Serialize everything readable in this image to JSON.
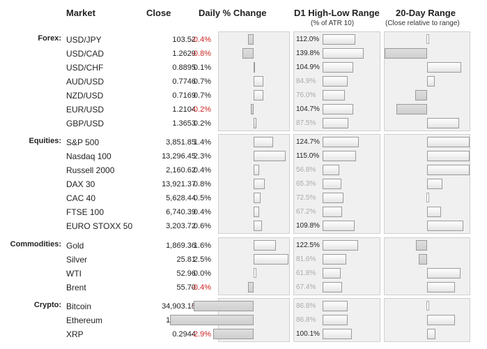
{
  "headers": {
    "market": "Market",
    "close": "Close",
    "change": "Daily % Change",
    "range": "D1 High-Low Range",
    "range_sub": "(% of ATR 10)",
    "twenty": "20-Day Range",
    "twenty_sub": "(Close relative to range)"
  },
  "colors": {
    "negative": "#cc2222",
    "positive": "#222222",
    "faded": "#aaaaaa"
  },
  "groups": [
    {
      "label": "Forex:",
      "rows": [
        {
          "name": "USD/JPY",
          "close": "103.52",
          "change": "-0.4%",
          "change_value": -0.4,
          "atr": "112.0%",
          "atr_value": 112.0,
          "atr_faded": false,
          "pos20": 0.0
        },
        {
          "name": "USD/CAD",
          "close": "1.2629",
          "change": "-0.8%",
          "change_value": -0.8,
          "atr": "139.8%",
          "atr_value": 139.8,
          "atr_faded": false,
          "pos20": -1.0
        },
        {
          "name": "USD/CHF",
          "close": "0.8895",
          "change": "0.1%",
          "change_value": 0.1,
          "atr": "104.9%",
          "atr_value": 104.9,
          "atr_faded": false,
          "pos20": 0.8
        },
        {
          "name": "AUD/USD",
          "close": "0.7746",
          "change": "0.7%",
          "change_value": 0.7,
          "atr": "84.9%",
          "atr_value": 84.9,
          "atr_faded": true,
          "pos20": 0.18
        },
        {
          "name": "NZD/USD",
          "close": "0.7169",
          "change": "0.7%",
          "change_value": 0.7,
          "atr": "76.0%",
          "atr_value": 76.0,
          "atr_faded": true,
          "pos20": -0.28
        },
        {
          "name": "EUR/USD",
          "close": "1.2104",
          "change": "-0.2%",
          "change_value": -0.2,
          "atr": "104.7%",
          "atr_value": 104.7,
          "atr_faded": false,
          "pos20": -0.72
        },
        {
          "name": "GBP/USD",
          "close": "1.3653",
          "change": "0.2%",
          "change_value": 0.2,
          "atr": "87.5%",
          "atr_value": 87.5,
          "atr_faded": true,
          "pos20": 0.75
        }
      ]
    },
    {
      "label": "Equities:",
      "rows": [
        {
          "name": "S&P 500",
          "close": "3,851.85",
          "change": "1.4%",
          "change_value": 1.4,
          "atr": "124.7%",
          "atr_value": 124.7,
          "atr_faded": false,
          "pos20": 1.0
        },
        {
          "name": "Nasdaq 100",
          "close": "13,296.45",
          "change": "2.3%",
          "change_value": 2.3,
          "atr": "115.0%",
          "atr_value": 115.0,
          "atr_faded": false,
          "pos20": 1.0
        },
        {
          "name": "Russell 2000",
          "close": "2,160.62",
          "change": "0.4%",
          "change_value": 0.4,
          "atr": "56.8%",
          "atr_value": 56.8,
          "atr_faded": true,
          "pos20": 1.0
        },
        {
          "name": "DAX 30",
          "close": "13,921.37",
          "change": "0.8%",
          "change_value": 0.8,
          "atr": "65.3%",
          "atr_value": 65.3,
          "atr_faded": true,
          "pos20": 0.36
        },
        {
          "name": "CAC 40",
          "close": "5,628.44",
          "change": "0.5%",
          "change_value": 0.5,
          "atr": "72.5%",
          "atr_value": 72.5,
          "atr_faded": true,
          "pos20": 0.0
        },
        {
          "name": "FTSE 100",
          "close": "6,740.39",
          "change": "0.4%",
          "change_value": 0.4,
          "atr": "67.2%",
          "atr_value": 67.2,
          "atr_faded": true,
          "pos20": 0.33
        },
        {
          "name": "EURO STOXX 50",
          "close": "3,203.72",
          "change": "0.6%",
          "change_value": 0.6,
          "atr": "109.8%",
          "atr_value": 109.8,
          "atr_faded": false,
          "pos20": 0.85
        }
      ]
    },
    {
      "label": "Commodities:",
      "rows": [
        {
          "name": "Gold",
          "close": "1,869.36",
          "change": "1.6%",
          "change_value": 1.6,
          "atr": "122.5%",
          "atr_value": 122.5,
          "atr_faded": false,
          "pos20": -0.27
        },
        {
          "name": "Silver",
          "close": "25.81",
          "change": "2.5%",
          "change_value": 2.5,
          "atr": "81.6%",
          "atr_value": 81.6,
          "atr_faded": true,
          "pos20": -0.2
        },
        {
          "name": "WTI",
          "close": "52.96",
          "change": "0.0%",
          "change_value": 0.0,
          "atr": "61.8%",
          "atr_value": 61.8,
          "atr_faded": true,
          "pos20": 0.78
        },
        {
          "name": "Brent",
          "close": "55.70",
          "change": "-0.4%",
          "change_value": -0.4,
          "atr": "67.4%",
          "atr_value": 67.4,
          "atr_faded": true,
          "pos20": 0.66
        }
      ]
    },
    {
      "label": "Crypto:",
      "rows": [
        {
          "name": "Bitcoin",
          "close": "34,903.15",
          "change": "-4.3%",
          "change_value": -4.3,
          "atr": "86.8%",
          "atr_value": 86.8,
          "atr_faded": true,
          "pos20": 0.0
        },
        {
          "name": "Ethereum",
          "close": "1,324.40",
          "change": "-6.0%",
          "change_value": -6.0,
          "atr": "86.8%",
          "atr_value": 86.8,
          "atr_faded": true,
          "pos20": 0.66
        },
        {
          "name": "XRP",
          "close": "0.2944",
          "change": "-2.9%",
          "change_value": -2.9,
          "atr": "100.1%",
          "atr_value": 100.1,
          "atr_faded": false,
          "pos20": 0.2
        }
      ]
    }
  ]
}
